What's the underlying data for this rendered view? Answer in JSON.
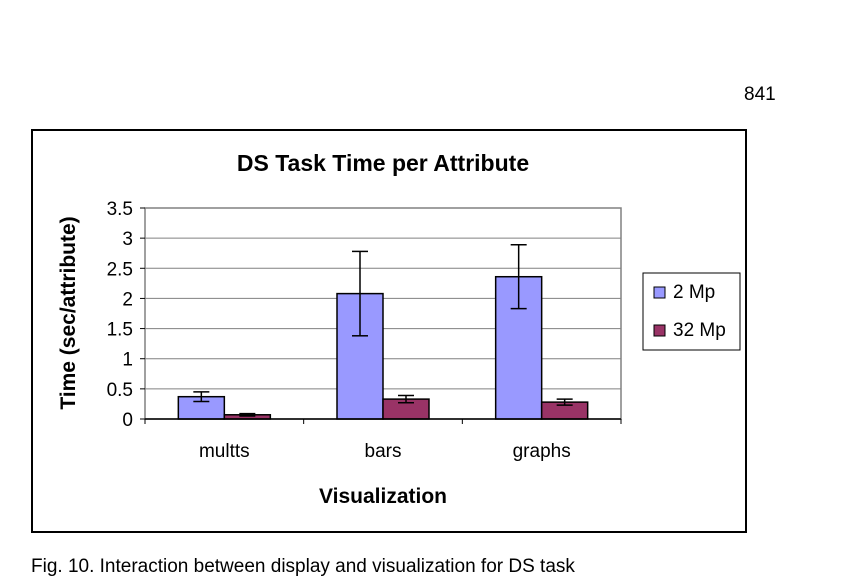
{
  "page": {
    "number": "841",
    "caption": "Fig. 10. Interaction between display and visualization for DS task"
  },
  "chart_data": {
    "type": "bar",
    "title": "DS Task Time per Attribute",
    "xlabel": "Visualization",
    "ylabel": "Time (sec/attribute)",
    "categories": [
      "multts",
      "bars",
      "graphs"
    ],
    "ylim": [
      0,
      3.5
    ],
    "yticks": [
      "0",
      "0.5",
      "1",
      "1.5",
      "2",
      "2.5",
      "3",
      "3.5"
    ],
    "grid": true,
    "legend_position": "right",
    "series": [
      {
        "name": "2 Mp",
        "color": "#9999ff",
        "values": [
          0.37,
          2.08,
          2.36
        ],
        "errors": [
          0.08,
          0.7,
          0.53
        ]
      },
      {
        "name": "32 Mp",
        "color": "#993366",
        "values": [
          0.07,
          0.33,
          0.28
        ],
        "errors": [
          0.02,
          0.06,
          0.05
        ]
      }
    ]
  }
}
